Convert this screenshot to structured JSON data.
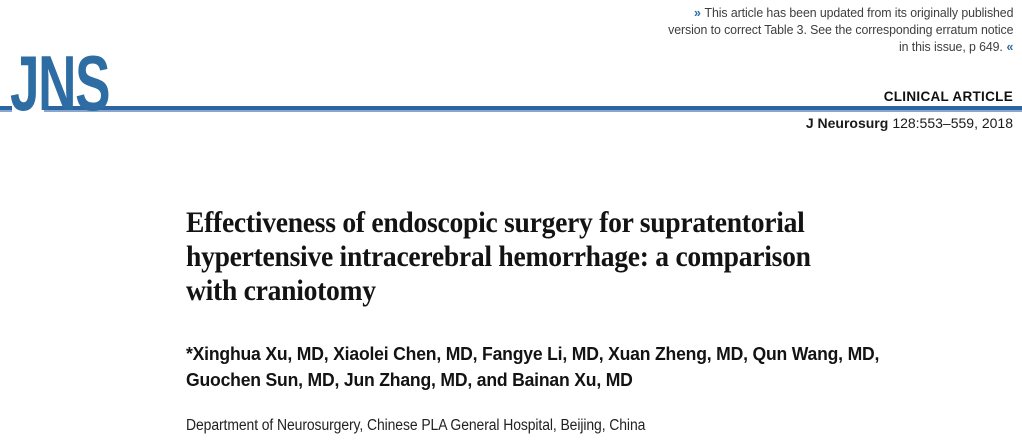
{
  "colors": {
    "brand_blue": "#2E6DA4",
    "rule_blue": "#2B66A0",
    "rule_light_blue": "#8AA6CE",
    "text_dark": "#1A1A1A",
    "notice_gray": "#3E3E3E"
  },
  "notice": {
    "open_glyph": "»",
    "close_glyph": "«",
    "lines": [
      "This article has been updated from its originally published",
      "version to correct Table 3. See the corresponding erratum notice",
      "in this issue, p 649."
    ]
  },
  "masthead": {
    "logo": "JNS",
    "article_type": "CLINICAL ARTICLE",
    "citation_journal": "J Neurosurg",
    "citation_detail": "128:553–559, 2018"
  },
  "article": {
    "title": "Effectiveness of endoscopic surgery for supratentorial hypertensive intracerebral hemorrhage: a comparison with craniotomy",
    "title_lines": [
      "Effectiveness of endoscopic surgery for supratentorial",
      "hypertensive intracerebral hemorrhage: a comparison",
      "with craniotomy"
    ],
    "authors": "*Xinghua Xu, MD, Xiaolei Chen, MD, Fangye Li, MD, Xuan Zheng, MD, Qun Wang, MD, Guochen Sun, MD, Jun Zhang, MD, and Bainan Xu, MD",
    "author_lines": [
      "*Xinghua Xu, MD, Xiaolei Chen, MD, Fangye Li, MD, Xuan Zheng, MD, Qun Wang, MD,",
      "Guochen Sun, MD, Jun Zhang, MD, and Bainan Xu, MD"
    ],
    "affiliation": "Department of Neurosurgery, Chinese PLA General Hospital, Beijing, China"
  }
}
